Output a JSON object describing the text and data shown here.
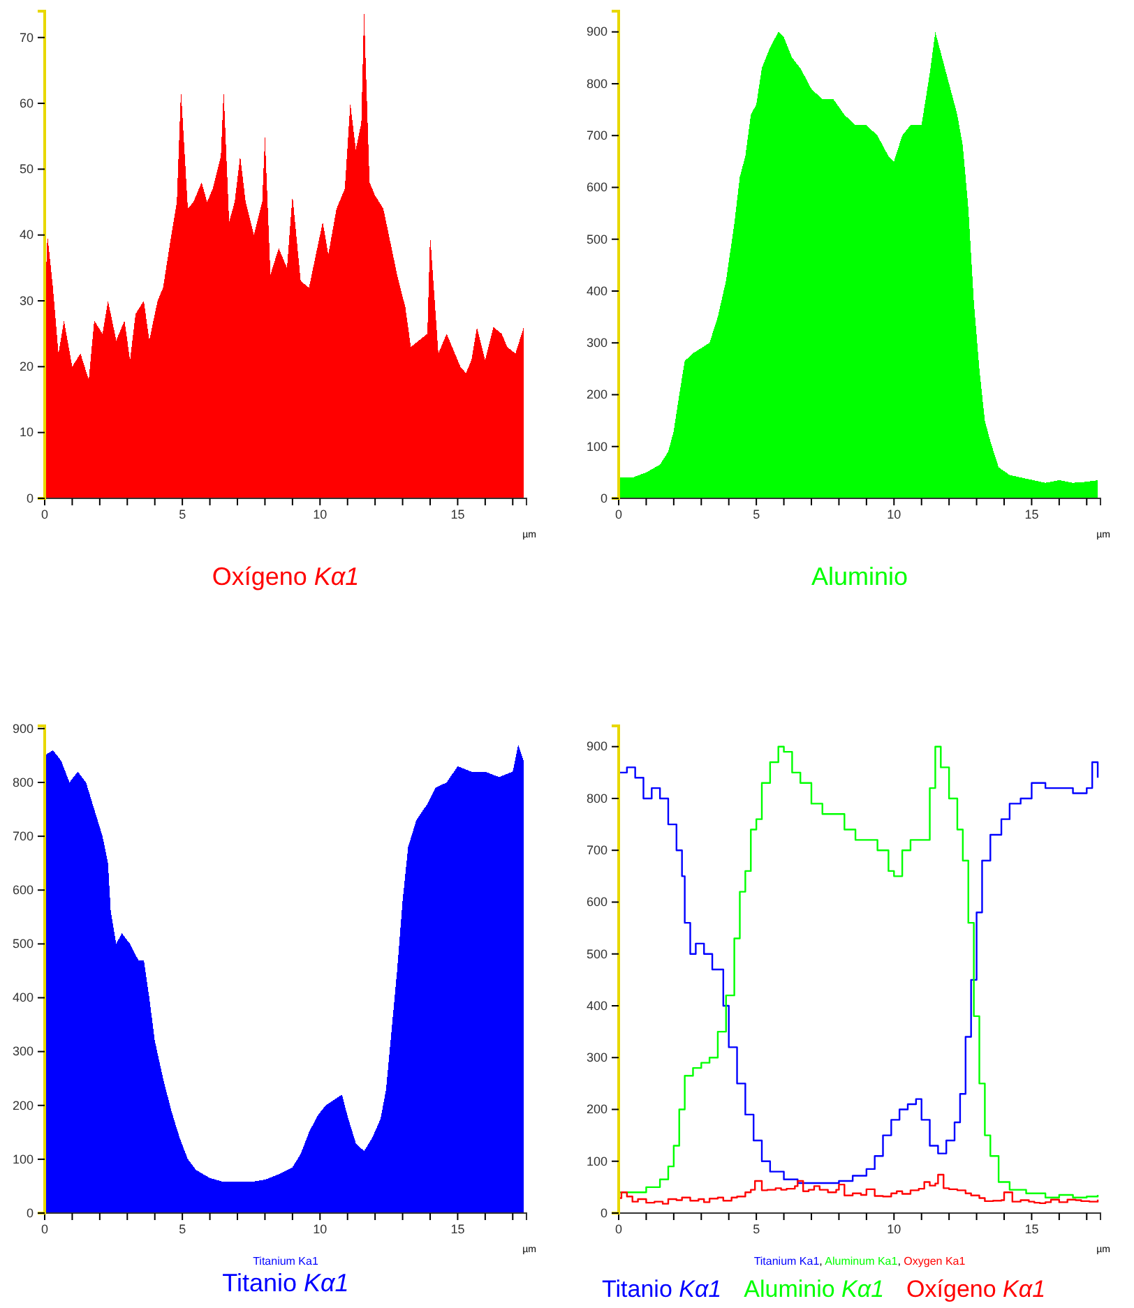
{
  "chart_data": [
    {
      "type": "area",
      "title": "Oxígeno Kα1",
      "xlabel": "µm",
      "xlim": [
        0,
        17.5
      ],
      "xticks": [
        0,
        {
          "value": 1,
          "label": null
        },
        {
          "value": 2,
          "label": null
        },
        {
          "value": 3,
          "label": null
        },
        {
          "value": 4,
          "label": null
        },
        5,
        {
          "value": 6,
          "label": null
        },
        {
          "value": 7,
          "label": null
        },
        {
          "value": 8,
          "label": null
        },
        {
          "value": 9,
          "label": null
        },
        10,
        {
          "value": 11,
          "label": null
        },
        {
          "value": 12,
          "label": null
        },
        {
          "value": 13,
          "label": null
        },
        {
          "value": 14,
          "label": null
        },
        15,
        {
          "value": 16,
          "label": null
        },
        {
          "value": 17,
          "label": null
        }
      ],
      "ylim": [
        0,
        74
      ],
      "yticks": [
        0,
        10,
        20,
        30,
        40,
        50,
        60,
        70
      ],
      "x": [
        0,
        0.1,
        0.3,
        0.5,
        0.7,
        1.0,
        1.3,
        1.6,
        1.8,
        2.1,
        2.3,
        2.6,
        2.9,
        3.1,
        3.3,
        3.6,
        3.8,
        4.1,
        4.3,
        4.6,
        4.8,
        4.95,
        5.2,
        5.4,
        5.7,
        5.9,
        6.1,
        6.4,
        6.5,
        6.7,
        6.9,
        7.1,
        7.3,
        7.6,
        7.9,
        8.0,
        8.2,
        8.5,
        8.8,
        9.0,
        9.3,
        9.6,
        9.9,
        10.1,
        10.3,
        10.6,
        10.9,
        11.1,
        11.3,
        11.5,
        11.6,
        11.8,
        12.0,
        12.3,
        12.6,
        12.8,
        13.1,
        13.3,
        13.6,
        13.9,
        14.0,
        14.3,
        14.6,
        14.9,
        15.1,
        15.3,
        15.5,
        15.7,
        16.0,
        16.3,
        16.6,
        16.8,
        17.1,
        17.4
      ],
      "series": [
        {
          "color": "#ff0000",
          "values": [
            29,
            40,
            32,
            22,
            27,
            20,
            22,
            18,
            27,
            25,
            30,
            24,
            27,
            21,
            28,
            30,
            24,
            30,
            32,
            40,
            45,
            62,
            44,
            45,
            48,
            45,
            47,
            52,
            62,
            42,
            45,
            52,
            45,
            40,
            45,
            55,
            34,
            38,
            35,
            46,
            33,
            32,
            38,
            42,
            37,
            44,
            47,
            60,
            53,
            57,
            74,
            48,
            46,
            44,
            38,
            34,
            29,
            23,
            24,
            25,
            40,
            22,
            25,
            22,
            20,
            19,
            21,
            26,
            21,
            26,
            25,
            23,
            22,
            26
          ]
        }
      ]
    },
    {
      "type": "area",
      "title": "Aluminio",
      "xlabel": "µm",
      "xlim": [
        0,
        17.5
      ],
      "xticks": [
        0,
        {
          "value": 1,
          "label": null
        },
        {
          "value": 2,
          "label": null
        },
        {
          "value": 3,
          "label": null
        },
        {
          "value": 4,
          "label": null
        },
        5,
        {
          "value": 6,
          "label": null
        },
        {
          "value": 7,
          "label": null
        },
        {
          "value": 8,
          "label": null
        },
        {
          "value": 9,
          "label": null
        },
        10,
        {
          "value": 11,
          "label": null
        },
        {
          "value": 12,
          "label": null
        },
        {
          "value": 13,
          "label": null
        },
        {
          "value": 14,
          "label": null
        },
        15,
        {
          "value": 16,
          "label": null
        },
        {
          "value": 17,
          "label": null
        }
      ],
      "ylim": [
        0,
        940
      ],
      "yticks": [
        0,
        100,
        200,
        300,
        400,
        500,
        600,
        700,
        800,
        900
      ],
      "x": [
        0,
        0.5,
        1.0,
        1.5,
        1.8,
        2.0,
        2.2,
        2.4,
        2.7,
        3.0,
        3.3,
        3.6,
        3.9,
        4.2,
        4.4,
        4.6,
        4.8,
        5.0,
        5.2,
        5.5,
        5.8,
        6.0,
        6.3,
        6.6,
        7.0,
        7.4,
        7.8,
        8.2,
        8.6,
        9.0,
        9.4,
        9.8,
        10.0,
        10.3,
        10.6,
        11.0,
        11.3,
        11.5,
        11.7,
        12.0,
        12.3,
        12.5,
        12.7,
        12.9,
        13.1,
        13.3,
        13.5,
        13.8,
        14.2,
        14.8,
        15.5,
        16.0,
        16.5,
        17.0,
        17.4
      ],
      "series": [
        {
          "color": "#00ff00",
          "values": [
            40,
            40,
            50,
            65,
            90,
            130,
            200,
            265,
            280,
            290,
            300,
            350,
            420,
            530,
            620,
            660,
            740,
            760,
            830,
            870,
            900,
            890,
            850,
            830,
            790,
            770,
            770,
            740,
            720,
            720,
            700,
            660,
            650,
            700,
            720,
            720,
            820,
            900,
            860,
            800,
            740,
            680,
            560,
            380,
            250,
            150,
            110,
            60,
            45,
            38,
            30,
            35,
            30,
            32,
            35
          ]
        }
      ]
    },
    {
      "type": "area",
      "title": "Titanio Kα1",
      "xlabel": "µm",
      "annotations": [
        "Titanium Ka1"
      ],
      "xlim": [
        0,
        17.5
      ],
      "xticks": [
        0,
        {
          "value": 1,
          "label": null
        },
        {
          "value": 2,
          "label": null
        },
        {
          "value": 3,
          "label": null
        },
        {
          "value": 4,
          "label": null
        },
        5,
        {
          "value": 6,
          "label": null
        },
        {
          "value": 7,
          "label": null
        },
        {
          "value": 8,
          "label": null
        },
        {
          "value": 9,
          "label": null
        },
        10,
        {
          "value": 11,
          "label": null
        },
        {
          "value": 12,
          "label": null
        },
        {
          "value": 13,
          "label": null
        },
        {
          "value": 14,
          "label": null
        },
        15,
        {
          "value": 16,
          "label": null
        },
        {
          "value": 17,
          "label": null
        }
      ],
      "ylim": [
        0,
        905
      ],
      "yticks": [
        0,
        100,
        200,
        300,
        400,
        500,
        600,
        700,
        800,
        900
      ],
      "x": [
        0,
        0.3,
        0.6,
        0.9,
        1.2,
        1.5,
        1.8,
        2.1,
        2.3,
        2.4,
        2.6,
        2.8,
        3.1,
        3.4,
        3.6,
        3.8,
        4.0,
        4.3,
        4.6,
        4.9,
        5.2,
        5.5,
        6.0,
        6.5,
        7.0,
        7.5,
        8.0,
        8.5,
        9.0,
        9.3,
        9.6,
        9.9,
        10.2,
        10.5,
        10.8,
        11.0,
        11.3,
        11.6,
        11.9,
        12.2,
        12.4,
        12.6,
        12.8,
        13.0,
        13.2,
        13.5,
        13.9,
        14.2,
        14.6,
        15.0,
        15.5,
        16.0,
        16.5,
        17.0,
        17.2,
        17.4
      ],
      "series": [
        {
          "color": "#0000ff",
          "values": [
            850,
            860,
            840,
            800,
            820,
            800,
            750,
            700,
            650,
            560,
            500,
            520,
            500,
            470,
            470,
            400,
            320,
            250,
            190,
            140,
            100,
            80,
            65,
            58,
            58,
            58,
            62,
            72,
            85,
            110,
            150,
            180,
            200,
            210,
            220,
            180,
            130,
            115,
            140,
            175,
            230,
            340,
            450,
            580,
            680,
            730,
            760,
            790,
            800,
            830,
            820,
            820,
            810,
            820,
            870,
            840
          ]
        }
      ]
    },
    {
      "type": "step",
      "legend": "bottom",
      "xlabel": "µm",
      "annotations": [
        "Titanium Ka1, Aluminum Ka1, Oxygen Ka1"
      ],
      "xlim": [
        0,
        17.5
      ],
      "xticks": [
        0,
        {
          "value": 1,
          "label": null
        },
        {
          "value": 2,
          "label": null
        },
        {
          "value": 3,
          "label": null
        },
        {
          "value": 4,
          "label": null
        },
        5,
        {
          "value": 6,
          "label": null
        },
        {
          "value": 7,
          "label": null
        },
        {
          "value": 8,
          "label": null
        },
        {
          "value": 9,
          "label": null
        },
        10,
        {
          "value": 11,
          "label": null
        },
        {
          "value": 12,
          "label": null
        },
        {
          "value": 13,
          "label": null
        },
        {
          "value": 14,
          "label": null
        },
        15,
        {
          "value": 16,
          "label": null
        },
        {
          "value": 17,
          "label": null
        }
      ],
      "ylim": [
        0,
        940
      ],
      "yticks": [
        0,
        100,
        200,
        300,
        400,
        500,
        600,
        700,
        800,
        900
      ],
      "series": [
        {
          "name": "Titanio Kα1",
          "color": "#0000ff",
          "x": [
            0,
            0.3,
            0.6,
            0.9,
            1.2,
            1.5,
            1.8,
            2.1,
            2.3,
            2.4,
            2.6,
            2.8,
            3.1,
            3.4,
            3.6,
            3.8,
            4.0,
            4.3,
            4.6,
            4.9,
            5.2,
            5.5,
            6.0,
            6.5,
            7.0,
            7.5,
            8.0,
            8.5,
            9.0,
            9.3,
            9.6,
            9.9,
            10.2,
            10.5,
            10.8,
            11.0,
            11.3,
            11.6,
            11.9,
            12.2,
            12.4,
            12.6,
            12.8,
            13.0,
            13.2,
            13.5,
            13.9,
            14.2,
            14.6,
            15.0,
            15.5,
            16.0,
            16.5,
            17.0,
            17.2,
            17.4
          ],
          "values": [
            850,
            860,
            840,
            800,
            820,
            800,
            750,
            700,
            650,
            560,
            500,
            520,
            500,
            470,
            470,
            400,
            320,
            250,
            190,
            140,
            100,
            80,
            65,
            58,
            58,
            58,
            62,
            72,
            85,
            110,
            150,
            180,
            200,
            210,
            220,
            180,
            130,
            115,
            140,
            175,
            230,
            340,
            450,
            580,
            680,
            730,
            760,
            790,
            800,
            830,
            820,
            820,
            810,
            820,
            870,
            840
          ]
        },
        {
          "name": "Aluminio Kα1",
          "color": "#00ff00",
          "x": [
            0,
            0.5,
            1.0,
            1.5,
            1.8,
            2.0,
            2.2,
            2.4,
            2.7,
            3.0,
            3.3,
            3.6,
            3.9,
            4.2,
            4.4,
            4.6,
            4.8,
            5.0,
            5.2,
            5.5,
            5.8,
            6.0,
            6.3,
            6.6,
            7.0,
            7.4,
            7.8,
            8.2,
            8.6,
            9.0,
            9.4,
            9.8,
            10.0,
            10.3,
            10.6,
            11.0,
            11.3,
            11.5,
            11.7,
            12.0,
            12.3,
            12.5,
            12.7,
            12.9,
            13.1,
            13.3,
            13.5,
            13.8,
            14.2,
            14.8,
            15.5,
            16.0,
            16.5,
            17.0,
            17.4
          ],
          "values": [
            40,
            40,
            50,
            65,
            90,
            130,
            200,
            265,
            280,
            290,
            300,
            350,
            420,
            530,
            620,
            660,
            740,
            760,
            830,
            870,
            900,
            890,
            850,
            830,
            790,
            770,
            770,
            740,
            720,
            720,
            700,
            660,
            650,
            700,
            720,
            720,
            820,
            900,
            860,
            800,
            740,
            680,
            560,
            380,
            250,
            150,
            110,
            60,
            45,
            38,
            30,
            35,
            30,
            32,
            35
          ]
        },
        {
          "name": "Oxígeno Kα1",
          "color": "#ff0000",
          "x": [
            0,
            0.1,
            0.3,
            0.5,
            0.7,
            1.0,
            1.3,
            1.6,
            1.8,
            2.1,
            2.3,
            2.6,
            2.9,
            3.1,
            3.3,
            3.6,
            3.8,
            4.1,
            4.3,
            4.6,
            4.8,
            4.95,
            5.2,
            5.4,
            5.7,
            5.9,
            6.1,
            6.4,
            6.5,
            6.7,
            6.9,
            7.1,
            7.3,
            7.6,
            7.9,
            8.0,
            8.2,
            8.5,
            8.8,
            9.0,
            9.3,
            9.6,
            9.9,
            10.1,
            10.3,
            10.6,
            10.9,
            11.1,
            11.3,
            11.5,
            11.6,
            11.8,
            12.0,
            12.3,
            12.6,
            12.8,
            13.1,
            13.3,
            13.6,
            13.9,
            14.0,
            14.3,
            14.6,
            14.9,
            15.1,
            15.3,
            15.5,
            15.7,
            16.0,
            16.3,
            16.6,
            16.8,
            17.1,
            17.4
          ],
          "values": [
            29,
            40,
            32,
            22,
            27,
            20,
            22,
            18,
            27,
            25,
            30,
            24,
            27,
            21,
            28,
            30,
            24,
            30,
            32,
            40,
            45,
            62,
            44,
            45,
            48,
            45,
            47,
            52,
            62,
            42,
            45,
            52,
            45,
            40,
            45,
            55,
            34,
            38,
            35,
            46,
            33,
            32,
            38,
            42,
            37,
            44,
            47,
            60,
            53,
            57,
            74,
            48,
            46,
            44,
            38,
            34,
            29,
            23,
            24,
            25,
            40,
            22,
            25,
            22,
            20,
            19,
            21,
            26,
            21,
            26,
            25,
            23,
            22,
            26
          ]
        }
      ]
    }
  ]
}
